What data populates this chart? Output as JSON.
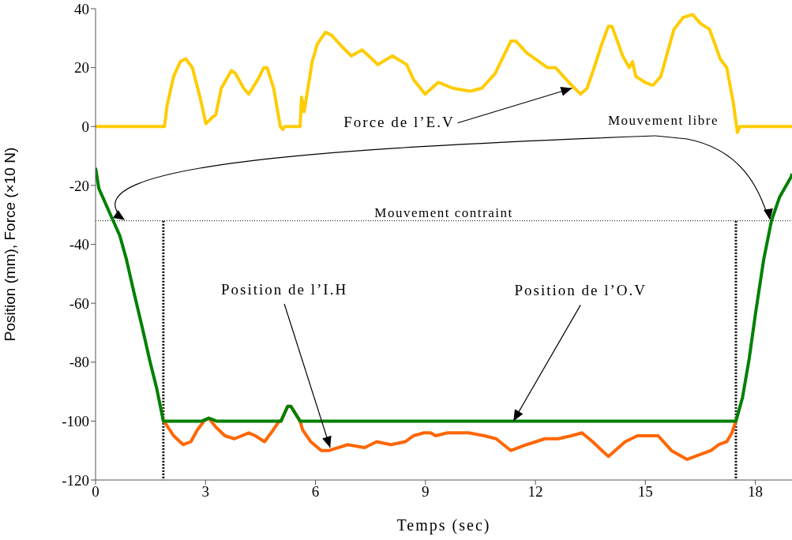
{
  "chart_data": {
    "type": "line",
    "xlabel": "Temps (sec)",
    "ylabel": "Position (mm), Force (×10 N)",
    "xlim": [
      0,
      19
    ],
    "xticks": [
      0,
      3,
      6,
      9,
      12,
      15,
      18
    ],
    "ylim": [
      -120,
      40
    ],
    "yticks": [
      -120,
      -100,
      -80,
      -60,
      -40,
      -20,
      0,
      20,
      40
    ],
    "marker": "none",
    "line_style": "solid",
    "series": [
      {
        "color": "#ffcc00",
        "x": [
          0,
          1.88,
          1.95,
          2.13,
          2.31,
          2.46,
          2.64,
          2.85,
          3.01,
          3.18,
          3.28,
          3.43,
          3.71,
          3.82,
          4.04,
          4.18,
          4.43,
          4.59,
          4.68,
          4.86,
          5.04,
          5.11,
          5.16,
          5.58,
          5.62,
          5.69,
          5.91,
          6.05,
          6.27,
          6.44,
          6.73,
          6.98,
          7.27,
          7.45,
          7.7,
          8.1,
          8.49,
          8.67,
          8.99,
          9.17,
          9.35,
          9.75,
          10.22,
          10.54,
          10.9,
          11.33,
          11.47,
          11.76,
          12.33,
          12.55,
          12.91,
          13.23,
          13.41,
          13.63,
          13.81,
          13.99,
          14.09,
          14.38,
          14.56,
          14.65,
          14.74,
          14.99,
          15.21,
          15.42,
          15.78,
          16.03,
          16.29,
          16.5,
          16.75,
          17.04,
          17.22,
          17.4,
          17.51,
          17.58,
          19
        ],
        "values": [
          0,
          0,
          7,
          17,
          22,
          23,
          20,
          10,
          1,
          3,
          4,
          13,
          19,
          18,
          13,
          11,
          16,
          20,
          20,
          13,
          0,
          -1,
          0,
          0,
          10,
          5,
          22,
          28,
          32,
          31,
          27,
          24,
          26,
          24,
          21,
          24,
          21,
          16,
          11,
          13,
          15,
          13,
          12,
          13,
          18,
          29,
          29,
          25,
          20,
          20,
          15,
          11,
          13,
          21,
          28,
          34,
          34,
          24,
          20,
          22,
          17,
          15,
          14,
          17,
          33,
          37,
          38,
          35,
          33,
          23,
          20,
          8,
          -2,
          0,
          0
        ]
      },
      {
        "color": "#008000",
        "x": [
          0,
          0.09,
          0.41,
          0.66,
          0.84,
          1.06,
          1.27,
          1.49,
          1.67,
          1.85,
          2.9,
          3.09,
          3.3,
          5.06,
          5.24,
          5.33,
          5.58,
          17.47,
          17.65,
          17.83,
          18.01,
          18.23,
          18.44,
          18.66,
          18.98,
          19
        ],
        "values": [
          -14,
          -21,
          -30,
          -37,
          -45,
          -57,
          -68,
          -80,
          -89,
          -100,
          -100,
          -99,
          -100,
          -100,
          -95,
          -95,
          -100,
          -100,
          -92,
          -79,
          -63,
          -45,
          -32,
          -24,
          -17,
          -16
        ]
      },
      {
        "color": "#ff6600",
        "x": [
          1.85,
          1.92,
          2.13,
          2.39,
          2.6,
          2.78,
          2.96,
          3.09,
          3.28,
          3.53,
          3.79,
          4.18,
          4.36,
          4.61,
          4.79,
          5.01,
          5.06,
          5.24,
          5.33,
          5.58,
          5.65,
          5.87,
          6.16,
          6.37,
          6.88,
          7.34,
          7.67,
          8.06,
          8.45,
          8.67,
          8.96,
          9.14,
          9.28,
          9.6,
          10.18,
          10.61,
          10.93,
          11.33,
          11.76,
          12.26,
          12.62,
          12.98,
          13.27,
          13.56,
          13.99,
          14.45,
          14.78,
          15.1,
          15.35,
          15.71,
          16.14,
          16.57,
          16.79,
          17.0,
          17.22,
          17.36,
          17.47
        ],
        "values": [
          -100,
          -101,
          -105,
          -108,
          -107,
          -103,
          -100,
          -99,
          -102,
          -105,
          -106,
          -104,
          -105,
          -107,
          -104,
          -100,
          -100,
          -95,
          -95,
          -100,
          -103,
          -107,
          -110,
          -110,
          -108,
          -109,
          -107,
          -108,
          -107,
          -105,
          -104,
          -104,
          -105,
          -104,
          -104,
          -105,
          -106,
          -110,
          -108,
          -106,
          -106,
          -105,
          -104,
          -107,
          -112,
          -107,
          -105,
          -105,
          -105,
          -110,
          -113,
          -111,
          -110,
          -108,
          -107,
          -104,
          -100
        ]
      }
    ],
    "ref_lines": [
      {
        "axis": "y",
        "value": -32,
        "label": "Mouvement contraint",
        "color": "#000000",
        "line_style": "dotted"
      },
      {
        "axis": "x",
        "value": 1.85,
        "color": "#000000",
        "line_style": "dotted"
      },
      {
        "axis": "x",
        "value": 17.47,
        "color": "#000000",
        "line_style": "dotted"
      }
    ],
    "annotations": [
      {
        "text": "Force de l’E.V",
        "x": 13.0,
        "y": 13
      },
      "Mouvement libre",
      {
        "text": "Position de l’I.H",
        "x": 6.4,
        "y": -109
      },
      {
        "text": "Position de l’O.V",
        "x": 11.4,
        "y": -100
      }
    ]
  }
}
